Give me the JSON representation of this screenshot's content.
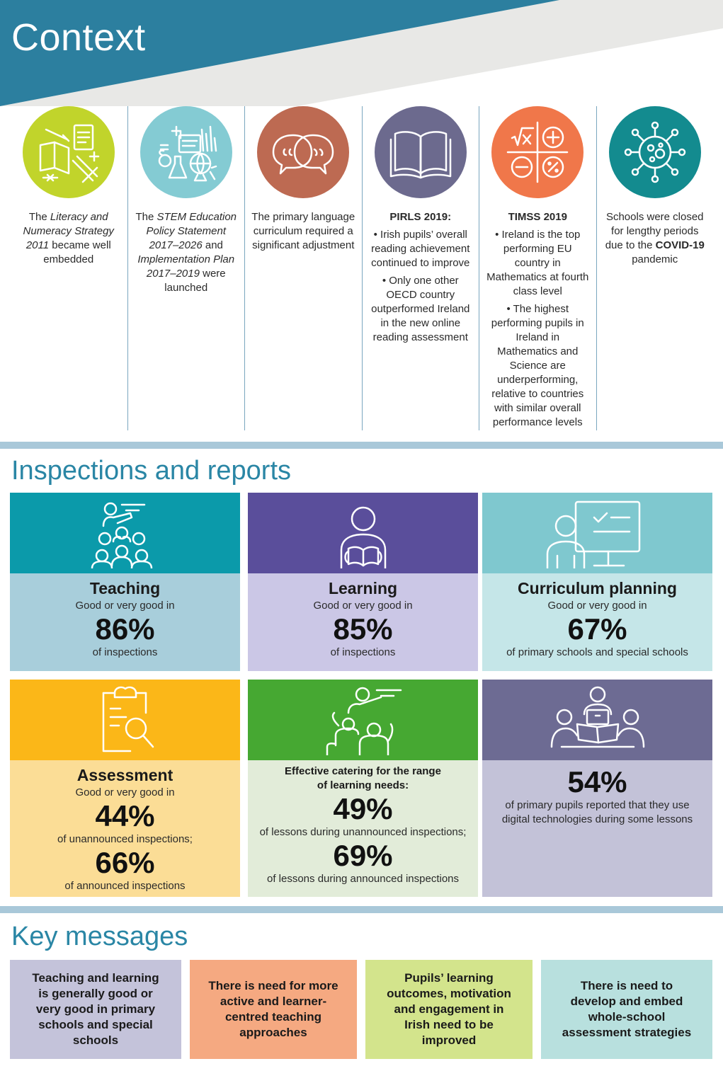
{
  "header": {
    "title": "Context"
  },
  "colors": {
    "header_teal": "#2c7f9f",
    "teaching_top": "#0b9aaa",
    "teaching_body": "#a8cedb",
    "learning_top": "#5a4e9b",
    "learning_body": "#cbc7e6",
    "curriculum_top": "#7fc8cf",
    "curriculum_body": "#c5e6e8",
    "assessment_top": "#fbb718",
    "assessment_body": "#fbdd96",
    "catering_top": "#46a832",
    "catering_body": "#e2ecd9",
    "digital_top": "#6d6b93",
    "digital_body": "#c3c2d8"
  },
  "context": [
    {
      "icon": "books-stationery-icon",
      "color": "#c1d42b",
      "pre": "The ",
      "em": "Literacy and Numeracy Strategy 2011",
      "post": " became well embedded"
    },
    {
      "icon": "stem-science-icon",
      "color": "#84cbd3",
      "pre": "The ",
      "em": "STEM Education Policy Statement 2017–2026",
      "mid": " and ",
      "em2": "Implementation Plan 2017–2019",
      "post": " were launched"
    },
    {
      "icon": "speech-bubbles-icon",
      "color": "#bd6a52",
      "text": "The primary language curriculum required a significant adjustment"
    },
    {
      "icon": "open-book-icon",
      "color": "#6c6a8e",
      "heading": "PIRLS 2019:",
      "bullets": [
        "• Irish pupils’ overall reading achievement continued to improve",
        "• Only one other OECD country outperformed Ireland in the new online reading assessment"
      ]
    },
    {
      "icon": "maths-symbols-icon",
      "color": "#f0774a",
      "heading": "TIMSS 2019",
      "bullets": [
        "• Ireland is the top performing EU country in Mathematics at fourth class level",
        "• The highest performing pupils in Ireland in Mathematics and Science are underperforming, relative to countries with similar overall performance levels"
      ]
    },
    {
      "icon": "virus-icon",
      "color": "#138b8f",
      "pre": "Schools were closed for lengthy periods due to the ",
      "strong": "COVID-19",
      "post": " pandemic"
    }
  ],
  "inspections": {
    "title": "Inspections and reports",
    "teaching": {
      "title": "Teaching",
      "sub": "Good or very good in",
      "value": "86%",
      "note": "of inspections"
    },
    "learning": {
      "title": "Learning",
      "sub": "Good or very good in",
      "value": "85%",
      "note": "of inspections"
    },
    "curriculum": {
      "title": "Curriculum planning",
      "sub": "Good or very good in",
      "value": "67%",
      "note": "of primary schools and special schools"
    },
    "assessment": {
      "title": "Assessment",
      "sub": "Good or very good in",
      "value1": "44%",
      "note1": "of unannounced inspections;",
      "value2": "66%",
      "note2": "of announced inspections"
    },
    "catering": {
      "title_line1": "Effective catering for the range",
      "title_line2": "of learning needs:",
      "value1": "49%",
      "note1": "of lessons during unannounced inspections;",
      "value2": "69%",
      "note2": "of lessons during announced inspections"
    },
    "digital": {
      "value": "54%",
      "note": "of primary pupils reported that they use digital technologies during some lessons"
    }
  },
  "key_messages": {
    "title": "Key messages",
    "items": [
      {
        "text": "Teaching and learning is generally good or very good in primary schools and special schools",
        "color": "#c4c3da"
      },
      {
        "text": "There is need for more active and learner-centred teaching approaches",
        "color": "#f5a981"
      },
      {
        "text": "Pupils’ learning outcomes, motivation and engagement in Irish need to be improved",
        "color": "#d3e48c"
      },
      {
        "text": "There is need to develop and embed whole-school assessment strategies",
        "color": "#b8e0de"
      }
    ]
  }
}
